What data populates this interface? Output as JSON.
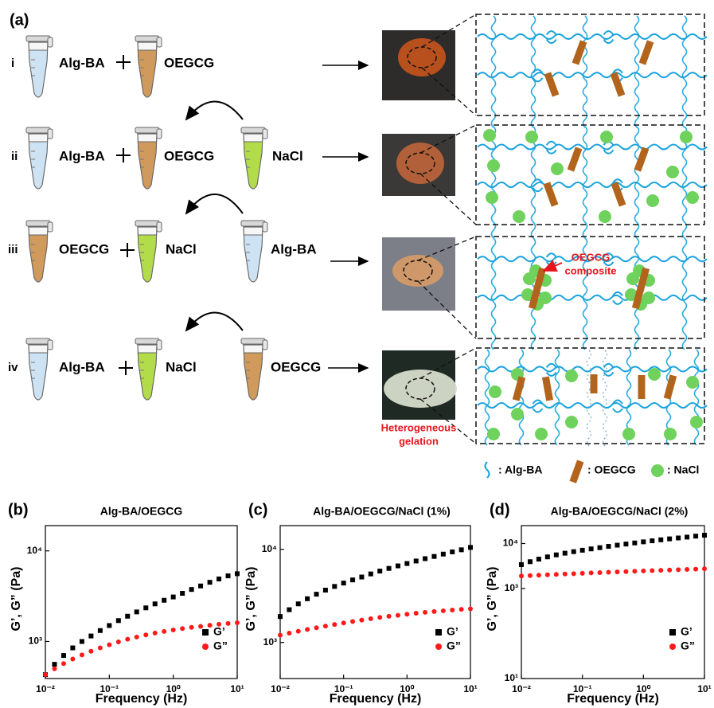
{
  "panel_a": {
    "label": "(a)",
    "rows": [
      {
        "numeral": "i",
        "items": [
          "Alg-BA",
          "OEGCG"
        ]
      },
      {
        "numeral": "ii",
        "items": [
          "Alg-BA",
          "OEGCG"
        ],
        "added": "NaCl"
      },
      {
        "numeral": "iii",
        "items": [
          "OEGCG",
          "NaCl"
        ],
        "added": "Alg-BA"
      },
      {
        "numeral": "iv",
        "items": [
          "Alg-BA",
          "NaCl"
        ],
        "added": "OEGCG"
      }
    ],
    "photo_note": [
      "Heterogeneous",
      "gelation"
    ],
    "callout": [
      "OEGCG",
      "composite"
    ],
    "legend": [
      ": Alg-BA",
      ": OEGCG",
      ": NaCl"
    ]
  },
  "chart_data": [
    {
      "type": "scatter",
      "panel_label": "(b)",
      "title": "Alg-BA/OEGCG",
      "xlabel": "Frequency (Hz)",
      "ylabel": "G’, G” (Pa)",
      "log_x": true,
      "log_y": true,
      "legend": "lower right",
      "x": [
        0.01,
        0.0139,
        0.0193,
        0.0268,
        0.0373,
        0.0518,
        0.072,
        0.1,
        0.139,
        0.193,
        0.268,
        0.373,
        0.518,
        0.72,
        1,
        1.39,
        1.93,
        2.68,
        3.73,
        5.18,
        7.2,
        10
      ],
      "series": [
        {
          "name": "G’",
          "color": "#000000",
          "marker": "square",
          "values": [
            430,
            560,
            700,
            850,
            1000,
            1150,
            1320,
            1500,
            1700,
            1900,
            2120,
            2350,
            2600,
            2850,
            3100,
            3400,
            3750,
            4100,
            4500,
            4900,
            5300,
            5600
          ]
        },
        {
          "name": "G”",
          "color": "#ff1a1a",
          "marker": "circle",
          "values": [
            430,
            500,
            570,
            640,
            710,
            780,
            850,
            920,
            990,
            1060,
            1120,
            1180,
            1240,
            1290,
            1340,
            1390,
            1430,
            1470,
            1510,
            1550,
            1580,
            1610
          ]
        }
      ],
      "xlim": [
        0.01,
        10
      ],
      "ylim": [
        390,
        19000
      ],
      "xticks": [
        {
          "value": 0.01,
          "label": "10⁻²"
        },
        {
          "value": 0.1,
          "label": "10⁻¹"
        },
        {
          "value": 1,
          "label": "10⁰"
        },
        {
          "value": 10,
          "label": "10¹"
        }
      ],
      "yticks": [
        {
          "value": 1000,
          "label": "10³"
        },
        {
          "value": 10000,
          "label": "10⁴"
        }
      ]
    },
    {
      "type": "scatter",
      "panel_label": "(c)",
      "title": "Alg-BA/OEGCG/NaCl (1%)",
      "xlabel": "Frequency (Hz)",
      "ylabel": "G’, G” (Pa)",
      "log_x": true,
      "log_y": true,
      "legend": "lower right",
      "x": [
        0.01,
        0.0139,
        0.0193,
        0.0268,
        0.0373,
        0.0518,
        0.072,
        0.1,
        0.139,
        0.193,
        0.268,
        0.373,
        0.518,
        0.72,
        1,
        1.39,
        1.93,
        2.68,
        3.73,
        5.18,
        7.2,
        10
      ],
      "series": [
        {
          "name": "G’",
          "color": "#000000",
          "marker": "square",
          "values": [
            1900,
            2250,
            2600,
            2950,
            3300,
            3650,
            4000,
            4350,
            4700,
            5050,
            5450,
            5850,
            6250,
            6650,
            7050,
            7500,
            7950,
            8400,
            8900,
            9400,
            9900,
            10500
          ]
        },
        {
          "name": "G”",
          "color": "#ff1a1a",
          "marker": "circle",
          "values": [
            1200,
            1260,
            1320,
            1380,
            1440,
            1500,
            1560,
            1620,
            1680,
            1740,
            1800,
            1860,
            1910,
            1960,
            2010,
            2060,
            2110,
            2150,
            2190,
            2230,
            2270,
            2300
          ]
        }
      ],
      "xlim": [
        0.01,
        10
      ],
      "ylim": [
        410,
        18000
      ],
      "xticks": [
        {
          "value": 0.01,
          "label": "10⁻²"
        },
        {
          "value": 0.1,
          "label": "10⁻¹"
        },
        {
          "value": 1,
          "label": "10⁰"
        },
        {
          "value": 10,
          "label": "10¹"
        }
      ],
      "yticks": [
        {
          "value": 1000,
          "label": "10³"
        },
        {
          "value": 10000,
          "label": "10⁴"
        }
      ]
    },
    {
      "type": "scatter",
      "panel_label": "(d)",
      "title": "Alg-BA/OEGCG/NaCl (2%)",
      "xlabel": "Frequency (Hz)",
      "ylabel": "G’, G” (Pa)",
      "log_x": true,
      "log_y": true,
      "legend": "lower right",
      "x": [
        0.01,
        0.0139,
        0.0193,
        0.0268,
        0.0373,
        0.0518,
        0.072,
        0.1,
        0.139,
        0.193,
        0.268,
        0.373,
        0.518,
        0.72,
        1,
        1.39,
        1.93,
        2.68,
        3.73,
        5.18,
        7.2,
        10
      ],
      "series": [
        {
          "name": "G’",
          "color": "#000000",
          "marker": "square",
          "values": [
            3400,
            3950,
            4500,
            5050,
            5600,
            6100,
            6600,
            7100,
            7600,
            8100,
            8650,
            9200,
            9750,
            10300,
            10900,
            11500,
            12100,
            12700,
            13300,
            13900,
            14600,
            15300
          ]
        },
        {
          "name": "G”",
          "color": "#ff1a1a",
          "marker": "circle",
          "values": [
            1900,
            1940,
            1980,
            2020,
            2060,
            2100,
            2140,
            2180,
            2220,
            2260,
            2300,
            2340,
            2380,
            2420,
            2460,
            2500,
            2540,
            2580,
            2620,
            2660,
            2700,
            2750
          ]
        }
      ],
      "xlim": [
        0.01,
        10
      ],
      "ylim": [
        10,
        25000
      ],
      "xticks": [
        {
          "value": 0.01,
          "label": "10⁻²"
        },
        {
          "value": 0.1,
          "label": "10⁻¹"
        },
        {
          "value": 1,
          "label": "10⁰"
        },
        {
          "value": 10,
          "label": "10¹"
        }
      ],
      "yticks": [
        {
          "value": 10,
          "label": "10¹"
        },
        {
          "value": 1000,
          "label": "10³"
        },
        {
          "value": 10000,
          "label": "10⁴"
        }
      ]
    }
  ]
}
